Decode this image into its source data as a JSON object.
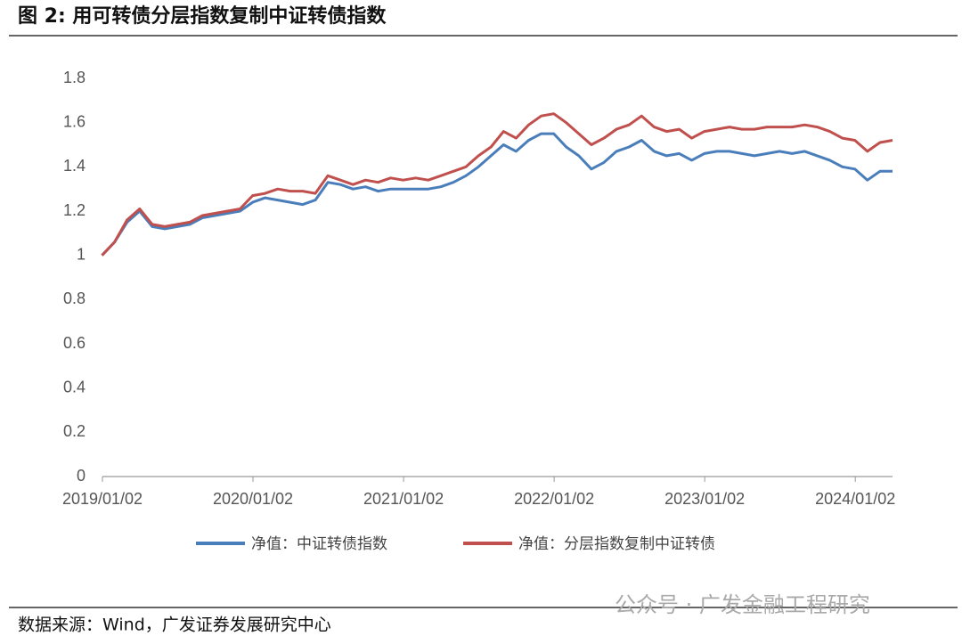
{
  "chart_data": {
    "type": "line",
    "title": "图 2:  用可转债分层指数复制中证转债指数",
    "source": "数据来源：Wind，广发证券发展研究中心",
    "watermark": "公众号 · 广发金融工程研究",
    "x": [
      "2019/01",
      "2019/02",
      "2019/03",
      "2019/04",
      "2019/05",
      "2019/06",
      "2019/07",
      "2019/08",
      "2019/09",
      "2019/10",
      "2019/11",
      "2019/12",
      "2020/01",
      "2020/02",
      "2020/03",
      "2020/04",
      "2020/05",
      "2020/06",
      "2020/07",
      "2020/08",
      "2020/09",
      "2020/10",
      "2020/11",
      "2020/12",
      "2021/01",
      "2021/02",
      "2021/03",
      "2021/04",
      "2021/05",
      "2021/06",
      "2021/07",
      "2021/08",
      "2021/09",
      "2021/10",
      "2021/11",
      "2021/12",
      "2022/01",
      "2022/02",
      "2022/03",
      "2022/04",
      "2022/05",
      "2022/06",
      "2022/07",
      "2022/08",
      "2022/09",
      "2022/10",
      "2022/11",
      "2022/12",
      "2023/01",
      "2023/02",
      "2023/03",
      "2023/04",
      "2023/05",
      "2023/06",
      "2023/07",
      "2023/08",
      "2023/09",
      "2023/10",
      "2023/11",
      "2023/12",
      "2024/01",
      "2024/02",
      "2024/03",
      "2024/04"
    ],
    "series": [
      {
        "name": "净值：中证转债指数",
        "color": "#4a7ebb",
        "values": [
          1.0,
          1.06,
          1.15,
          1.2,
          1.13,
          1.12,
          1.13,
          1.14,
          1.17,
          1.18,
          1.19,
          1.2,
          1.24,
          1.26,
          1.25,
          1.24,
          1.23,
          1.25,
          1.33,
          1.32,
          1.3,
          1.31,
          1.29,
          1.3,
          1.3,
          1.3,
          1.3,
          1.31,
          1.33,
          1.36,
          1.4,
          1.45,
          1.5,
          1.47,
          1.52,
          1.55,
          1.55,
          1.49,
          1.45,
          1.39,
          1.42,
          1.47,
          1.49,
          1.52,
          1.47,
          1.45,
          1.46,
          1.43,
          1.46,
          1.47,
          1.47,
          1.46,
          1.45,
          1.46,
          1.47,
          1.46,
          1.47,
          1.45,
          1.43,
          1.4,
          1.39,
          1.34,
          1.38,
          1.38
        ]
      },
      {
        "name": "净值：分层指数复制中证转债",
        "color": "#c0504d",
        "values": [
          1.0,
          1.06,
          1.16,
          1.21,
          1.14,
          1.13,
          1.14,
          1.15,
          1.18,
          1.19,
          1.2,
          1.21,
          1.27,
          1.28,
          1.3,
          1.29,
          1.29,
          1.28,
          1.36,
          1.34,
          1.32,
          1.34,
          1.33,
          1.35,
          1.34,
          1.35,
          1.34,
          1.36,
          1.38,
          1.4,
          1.45,
          1.49,
          1.56,
          1.53,
          1.59,
          1.63,
          1.64,
          1.6,
          1.55,
          1.5,
          1.53,
          1.57,
          1.59,
          1.63,
          1.58,
          1.56,
          1.57,
          1.53,
          1.56,
          1.57,
          1.58,
          1.57,
          1.57,
          1.58,
          1.58,
          1.58,
          1.59,
          1.58,
          1.56,
          1.53,
          1.52,
          1.47,
          1.51,
          1.52
        ]
      }
    ],
    "xlim": [
      "2019/01/02",
      "2024/04"
    ],
    "xticks": [
      "2019/01/02",
      "2020/01/02",
      "2021/01/02",
      "2022/01/02",
      "2023/01/02",
      "2024/01/02"
    ],
    "ylim": [
      0,
      1.8
    ],
    "yticks": [
      0,
      0.2,
      0.4,
      0.6,
      0.8,
      1,
      1.2,
      1.4,
      1.6,
      1.8
    ]
  }
}
